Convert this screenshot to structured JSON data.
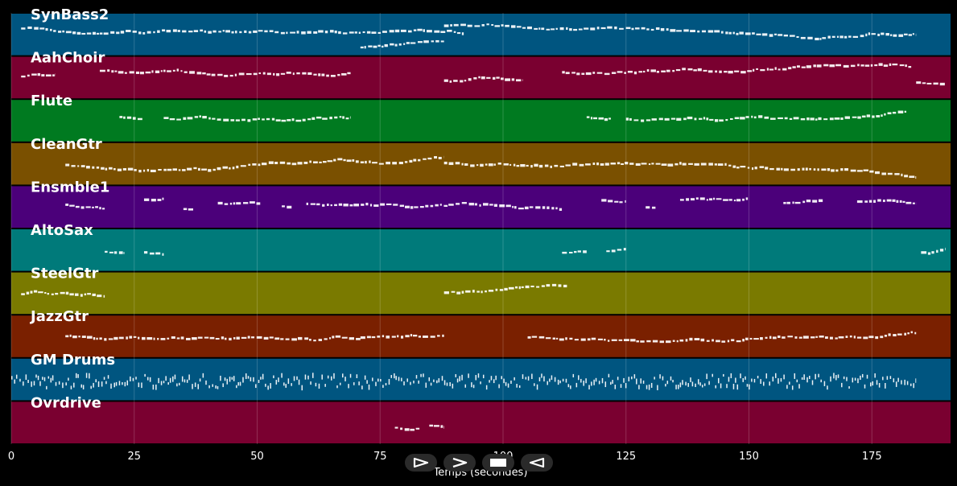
{
  "chart_data": {
    "type": "piano-roll",
    "xlabel": "Temps (secondes)",
    "xlim": [
      0,
      191
    ],
    "x_ticks": [
      0,
      25,
      50,
      75,
      100,
      125,
      150,
      175
    ],
    "grid": true,
    "tracks": [
      {
        "name": "SynBass2",
        "color": "#005580",
        "segments": [
          [
            2,
            92,
            0.35
          ],
          [
            71,
            88,
            0.8
          ],
          [
            88,
            184,
            0.3
          ]
        ]
      },
      {
        "name": "AahChoir",
        "color": "#7a0030",
        "segments": [
          [
            2,
            9,
            0.5
          ],
          [
            18,
            69,
            0.35
          ],
          [
            88,
            104,
            0.55
          ],
          [
            112,
            183,
            0.35
          ],
          [
            184,
            190,
            0.6
          ]
        ]
      },
      {
        "name": "Flute",
        "color": "#007a20",
        "segments": [
          [
            22,
            27,
            0.4
          ],
          [
            31,
            69,
            0.45
          ],
          [
            117,
            122,
            0.4
          ],
          [
            125,
            182,
            0.45
          ]
        ]
      },
      {
        "name": "CleanGtr",
        "color": "#7a5000",
        "segments": [
          [
            11,
            71,
            0.5
          ],
          [
            71,
            88,
            0.45
          ],
          [
            88,
            184,
            0.5
          ]
        ]
      },
      {
        "name": "Ensmble1",
        "color": "#4b007a",
        "segments": [
          [
            11,
            19,
            0.45
          ],
          [
            27,
            31,
            0.35
          ],
          [
            35,
            37,
            0.55
          ],
          [
            42,
            51,
            0.4
          ],
          [
            55,
            57,
            0.5
          ],
          [
            60,
            112,
            0.4
          ],
          [
            120,
            125,
            0.35
          ],
          [
            129,
            131,
            0.5
          ],
          [
            136,
            150,
            0.35
          ],
          [
            157,
            165,
            0.4
          ],
          [
            172,
            184,
            0.35
          ]
        ]
      },
      {
        "name": "AltoSax",
        "color": "#007a7a",
        "segments": [
          [
            19,
            23,
            0.55
          ],
          [
            27,
            31,
            0.55
          ],
          [
            112,
            117,
            0.55
          ],
          [
            121,
            125,
            0.55
          ],
          [
            185,
            190,
            0.55
          ]
        ]
      },
      {
        "name": "SteelGtr",
        "color": "#7a7a00",
        "segments": [
          [
            2,
            19,
            0.5
          ],
          [
            88,
            113,
            0.5
          ]
        ]
      },
      {
        "name": "JazzGtr",
        "color": "#7a2000",
        "segments": [
          [
            11,
            71,
            0.5
          ],
          [
            71,
            88,
            0.55
          ],
          [
            105,
            184,
            0.5
          ]
        ]
      },
      {
        "name": "GM Drums",
        "color": "#005580",
        "segments": [
          [
            0,
            184,
            0.7
          ]
        ]
      },
      {
        "name": "Ovrdrive",
        "color": "#7a0030",
        "segments": [
          [
            78,
            83,
            0.6
          ],
          [
            85,
            88,
            0.55
          ]
        ]
      }
    ]
  },
  "controls": {
    "play_icon": "play-outline-icon",
    "next_icon": "chevron-right-icon",
    "stop_icon": "stop-icon",
    "back_icon": "play-reverse-icon"
  }
}
